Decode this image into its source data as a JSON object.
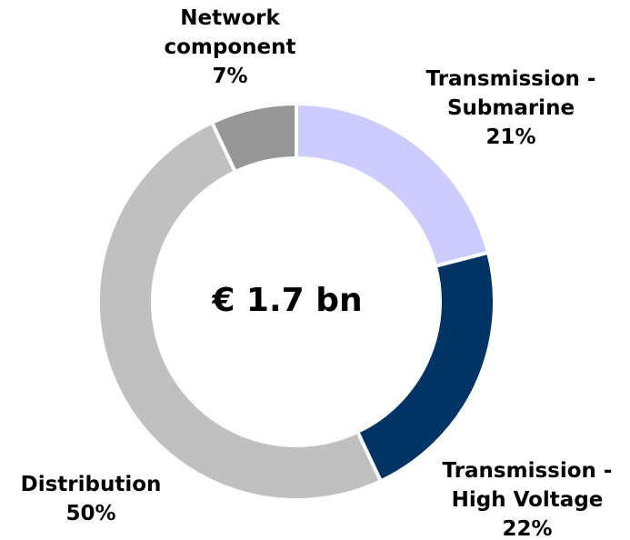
{
  "chart_data": {
    "type": "donut",
    "center_label": "€ 1.7 bn",
    "categories": [
      [
        "Transmission -",
        "Submarine"
      ],
      [
        "Transmission -",
        "High Voltage"
      ],
      [
        "Distribution"
      ],
      [
        "Network",
        "component"
      ]
    ],
    "values": [
      21,
      22,
      50,
      7
    ],
    "value_labels": [
      "21%",
      "22%",
      "50%",
      "7%"
    ],
    "colors": [
      "#ccccff",
      "#003366",
      "#c0c0c0",
      "#969696"
    ]
  }
}
